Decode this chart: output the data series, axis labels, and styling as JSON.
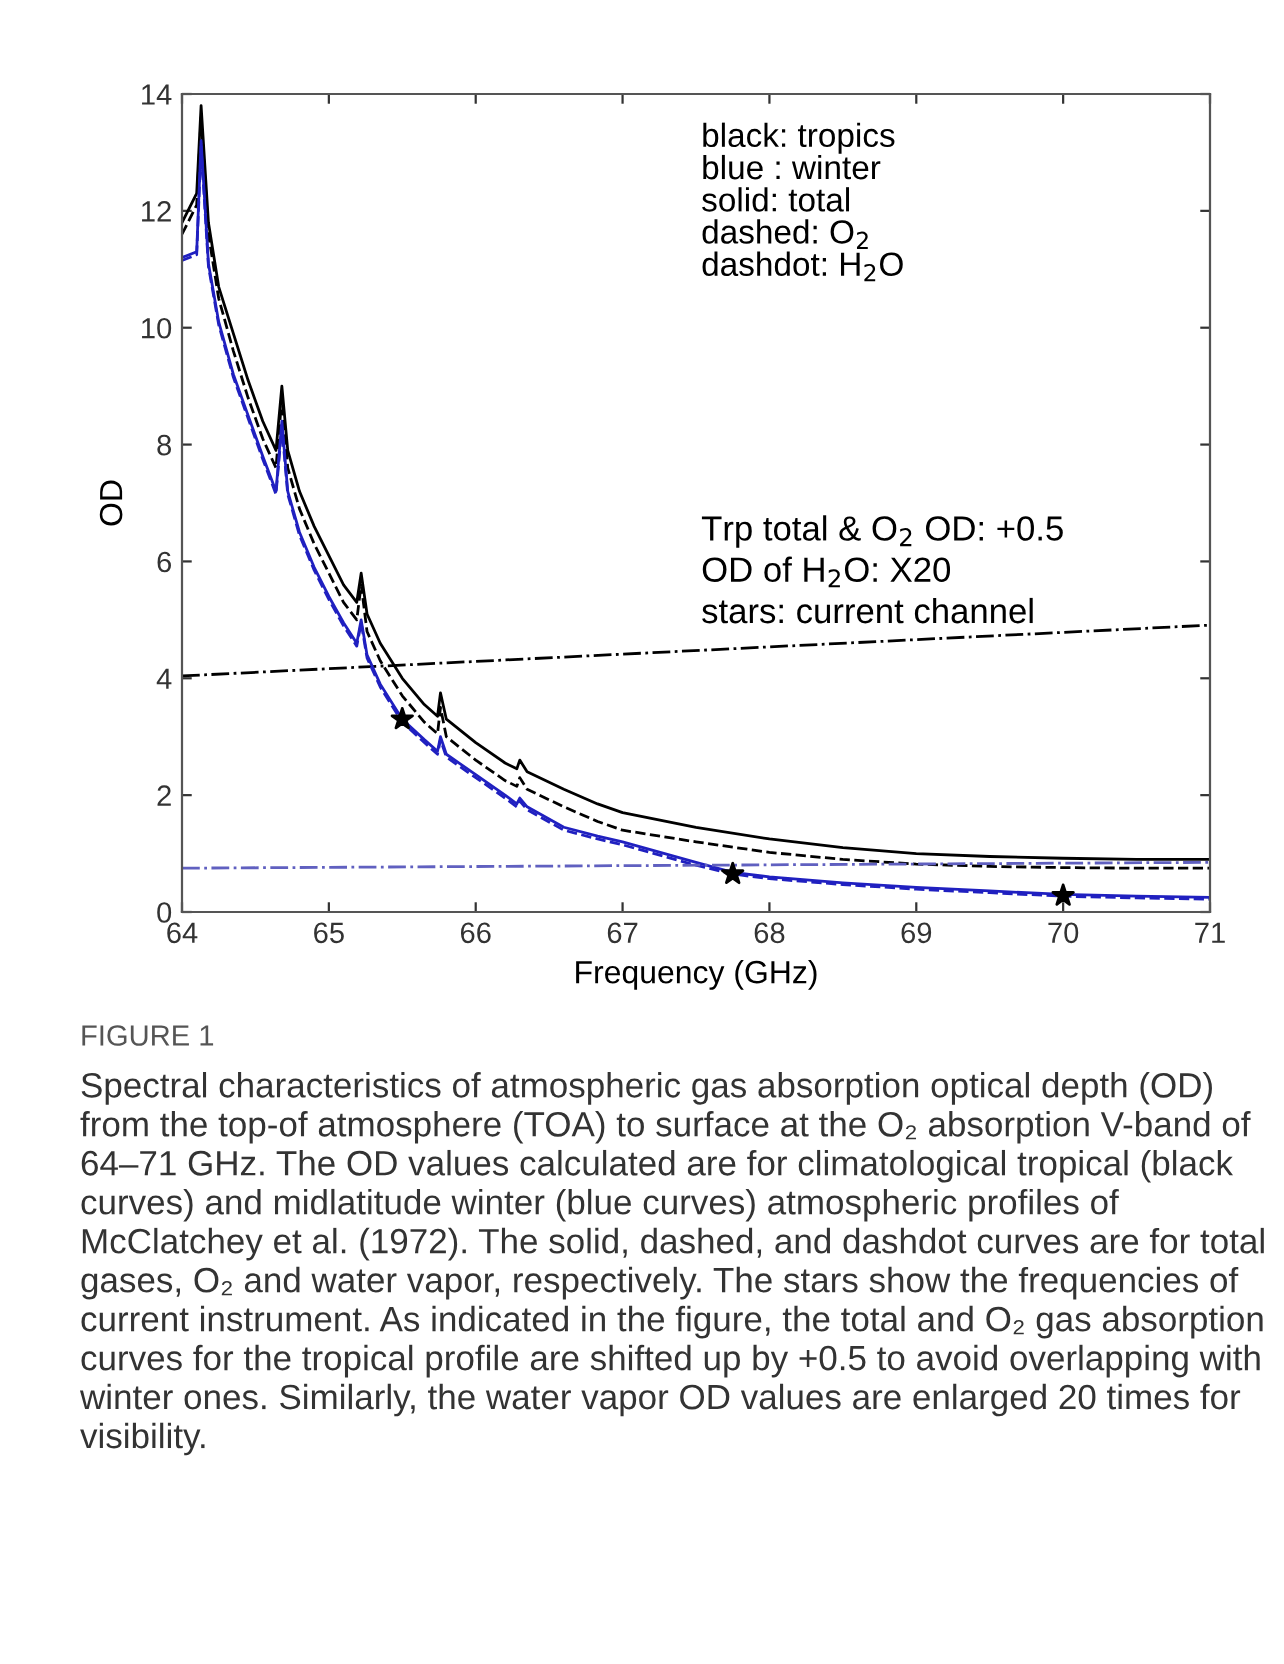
{
  "chart_data": {
    "type": "line",
    "xlabel": "Frequency (GHz)",
    "ylabel": "OD",
    "xlim": [
      64,
      71
    ],
    "ylim": [
      0,
      14
    ],
    "xticks": [
      64,
      65,
      66,
      67,
      68,
      69,
      70,
      71
    ],
    "yticks": [
      0,
      2,
      4,
      6,
      8,
      10,
      12,
      14
    ],
    "grid": false,
    "legend": false,
    "series": [
      {
        "color": "#000000",
        "line_style": "solid",
        "x": [
          64.0,
          64.1,
          64.13,
          64.18,
          64.25,
          64.35,
          64.45,
          64.55,
          64.64,
          64.68,
          64.72,
          64.8,
          64.9,
          65.0,
          65.1,
          65.19,
          65.22,
          65.26,
          65.35,
          65.5,
          65.65,
          65.74,
          65.76,
          65.8,
          66.0,
          66.2,
          66.28,
          66.3,
          66.35,
          66.6,
          66.83,
          67.0,
          67.5,
          68.0,
          68.5,
          69.0,
          69.5,
          70.0,
          70.5,
          71.0
        ],
        "values": [
          11.8,
          12.3,
          13.8,
          11.8,
          10.7,
          9.9,
          9.1,
          8.4,
          7.9,
          9.0,
          7.9,
          7.2,
          6.6,
          6.1,
          5.6,
          5.3,
          5.8,
          5.1,
          4.6,
          4.0,
          3.55,
          3.35,
          3.75,
          3.3,
          2.9,
          2.55,
          2.45,
          2.6,
          2.4,
          2.1,
          1.85,
          1.7,
          1.45,
          1.25,
          1.1,
          1.0,
          0.95,
          0.92,
          0.9,
          0.9
        ]
      },
      {
        "color": "#000000",
        "line_style": "dashed",
        "x": [
          64.0,
          64.1,
          64.13,
          64.18,
          64.25,
          64.35,
          64.45,
          64.55,
          64.64,
          64.68,
          64.72,
          64.8,
          64.9,
          65.0,
          65.1,
          65.19,
          65.22,
          65.26,
          65.35,
          65.5,
          65.65,
          65.74,
          65.76,
          65.8,
          66.0,
          66.2,
          66.28,
          66.3,
          66.35,
          66.6,
          66.83,
          67.0,
          67.5,
          68.0,
          68.5,
          69.0,
          69.5,
          70.0,
          70.5,
          71.0
        ],
        "values": [
          11.6,
          12.1,
          13.6,
          11.6,
          10.5,
          9.6,
          8.8,
          8.1,
          7.6,
          8.8,
          7.6,
          6.9,
          6.3,
          5.8,
          5.3,
          5.0,
          5.6,
          4.8,
          4.3,
          3.7,
          3.25,
          3.05,
          3.5,
          3.0,
          2.6,
          2.25,
          2.15,
          2.3,
          2.1,
          1.8,
          1.55,
          1.4,
          1.2,
          1.02,
          0.9,
          0.82,
          0.78,
          0.76,
          0.75,
          0.75
        ]
      },
      {
        "color": "#000000",
        "line_style": "dashdot",
        "x": [
          64.0,
          71.0
        ],
        "values": [
          4.04,
          4.91
        ]
      },
      {
        "color": "#2020c0",
        "line_style": "solid",
        "x": [
          64.0,
          64.1,
          64.13,
          64.18,
          64.25,
          64.35,
          64.45,
          64.55,
          64.64,
          64.68,
          64.72,
          64.8,
          64.9,
          65.0,
          65.1,
          65.19,
          65.22,
          65.26,
          65.35,
          65.5,
          65.65,
          65.74,
          65.76,
          65.8,
          66.0,
          66.2,
          66.28,
          66.3,
          66.35,
          66.6,
          66.83,
          67.0,
          67.5,
          67.75,
          68.0,
          68.5,
          69.0,
          69.5,
          70.0,
          70.5,
          71.0
        ],
        "values": [
          11.2,
          11.3,
          13.2,
          11.1,
          10.1,
          9.2,
          8.5,
          7.8,
          7.2,
          8.4,
          7.2,
          6.5,
          5.9,
          5.4,
          4.95,
          4.6,
          5.0,
          4.4,
          3.9,
          3.3,
          2.95,
          2.75,
          3.0,
          2.7,
          2.35,
          2.0,
          1.85,
          1.95,
          1.8,
          1.45,
          1.3,
          1.2,
          0.85,
          0.68,
          0.6,
          0.5,
          0.42,
          0.36,
          0.3,
          0.27,
          0.25
        ]
      },
      {
        "color": "#2020c0",
        "line_style": "dashed",
        "x": [
          64.0,
          64.1,
          64.13,
          64.18,
          64.25,
          64.35,
          64.45,
          64.55,
          64.64,
          64.68,
          64.72,
          64.8,
          64.9,
          65.0,
          65.1,
          65.19,
          65.22,
          65.26,
          65.35,
          65.5,
          65.65,
          65.74,
          65.76,
          65.8,
          66.0,
          66.2,
          66.28,
          66.3,
          66.35,
          66.6,
          66.83,
          67.0,
          67.5,
          67.75,
          68.0,
          68.5,
          69.0,
          69.5,
          70.0,
          70.5,
          71.0
        ],
        "values": [
          11.15,
          11.25,
          13.1,
          11.05,
          10.05,
          9.15,
          8.45,
          7.75,
          7.15,
          8.3,
          7.15,
          6.45,
          5.85,
          5.35,
          4.9,
          4.55,
          4.95,
          4.35,
          3.85,
          3.25,
          2.9,
          2.7,
          2.95,
          2.65,
          2.3,
          1.95,
          1.8,
          1.9,
          1.75,
          1.4,
          1.25,
          1.15,
          0.8,
          0.65,
          0.57,
          0.47,
          0.39,
          0.33,
          0.27,
          0.24,
          0.22
        ]
      },
      {
        "color": "#6060c0",
        "line_style": "dashdot",
        "x": [
          64.0,
          71.0
        ],
        "values": [
          0.75,
          0.85
        ]
      },
      {
        "type": "scatter",
        "color": "#000000",
        "marker": "star",
        "x": [
          65.5,
          67.75,
          70.0
        ],
        "values": [
          3.3,
          0.65,
          0.28
        ]
      }
    ],
    "annotations": [
      "black: tropics",
      "blue : winter",
      "solid: total",
      "dashed: O$_{2}$",
      "dashdot: H$_{2}$O",
      "Trp total & O$_{2}$ OD: +0.5",
      "OD of H$_{2}$O: X20",
      "stars: current channel",
      "FIGURE 1",
      "Spectral characteristics of atmospheric gas absorption optical depth (OD) from the top-of atmosphere (TOA) to surface at the O₂ absorption V-band of 64–71 GHz. The OD values calculated are for climatological tropical (black curves) and midlatitude winter (blue curves) atmospheric profiles of McClatchey et al. (1972). The solid, dashed, and dashdot curves are for total gases, O₂ and water vapor, respectively. The stars show the frequencies of current instrument. As indicated in the figure, the total and O₂ gas absorption curves for the tropical profile are shifted up by +0.5 to avoid overlapping with winter ones. Similarly, the water vapor OD values are enlarged 20 times for visibility."
    ]
  }
}
